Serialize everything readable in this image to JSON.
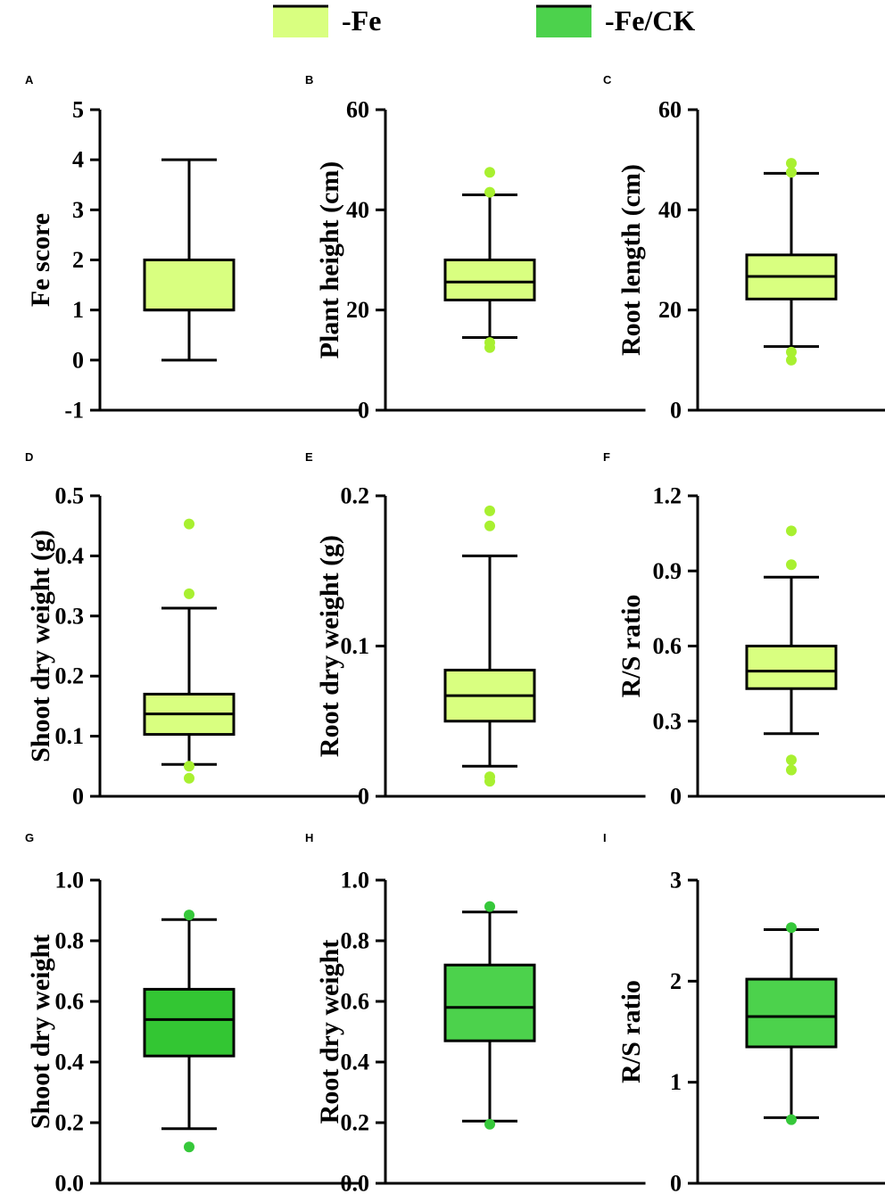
{
  "colors": {
    "fe": "#d9ff80",
    "fe_outlier": "#a8f030",
    "fe_ck": "#4cd24c",
    "fe_ck_box_g": "#33c633",
    "fe_ck_outlier": "#36c83a",
    "axis": "#000000"
  },
  "legend": [
    {
      "label": "-Fe",
      "color_key": "fe"
    },
    {
      "label": "-Fe/CK",
      "color_key": "fe_ck"
    }
  ],
  "chart_data": [
    {
      "panel": "A",
      "type": "box",
      "ylabel": "Fe score",
      "ylim": [
        -1,
        5
      ],
      "yticks": [
        -1,
        0,
        1,
        2,
        3,
        4,
        5
      ],
      "tick_labels": [
        "-1",
        "0",
        "1",
        "2",
        "3",
        "4",
        "5"
      ],
      "q1": 1,
      "median": 1,
      "q3": 2,
      "whisker_low": 0,
      "whisker_high": 4,
      "outliers": [],
      "color_key": "fe",
      "outlier_color_key": "fe_outlier"
    },
    {
      "panel": "B",
      "type": "box",
      "ylabel": "Plant height (cm)",
      "ylim": [
        0,
        60
      ],
      "yticks": [
        0,
        20,
        40,
        60
      ],
      "tick_labels": [
        "0",
        "20",
        "40",
        "60"
      ],
      "q1": 22,
      "median": 25.6,
      "q3": 30,
      "whisker_low": 14.5,
      "whisker_high": 43,
      "outliers": [
        12.5,
        13.5,
        43.5,
        47.5
      ],
      "color_key": "fe",
      "outlier_color_key": "fe_outlier"
    },
    {
      "panel": "C",
      "type": "box",
      "ylabel": "Root length (cm)",
      "ylim": [
        0,
        60
      ],
      "yticks": [
        0,
        20,
        40,
        60
      ],
      "tick_labels": [
        "0",
        "20",
        "40",
        "60"
      ],
      "q1": 22.2,
      "median": 26.7,
      "q3": 31,
      "whisker_low": 12.7,
      "whisker_high": 47.3,
      "outliers": [
        10,
        11.6,
        47.5,
        49.3
      ],
      "color_key": "fe",
      "outlier_color_key": "fe_outlier"
    },
    {
      "panel": "D",
      "type": "box",
      "ylabel": "Shoot dry weight (g)",
      "ylim": [
        0,
        0.5
      ],
      "yticks": [
        0,
        0.1,
        0.2,
        0.3,
        0.4,
        0.5
      ],
      "tick_labels": [
        "0",
        "0.1",
        "0.2",
        "0.3",
        "0.4",
        "0.5"
      ],
      "q1": 0.103,
      "median": 0.137,
      "q3": 0.17,
      "whisker_low": 0.053,
      "whisker_high": 0.313,
      "outliers": [
        0.03,
        0.05,
        0.337,
        0.453
      ],
      "color_key": "fe",
      "outlier_color_key": "fe_outlier"
    },
    {
      "panel": "E",
      "type": "box",
      "ylabel": "Root dry weight (g)",
      "ylim": [
        0,
        0.2
      ],
      "yticks": [
        0,
        0.1,
        0.2
      ],
      "tick_labels": [
        "0",
        "0.1",
        "0.2"
      ],
      "q1": 0.05,
      "median": 0.067,
      "q3": 0.084,
      "whisker_low": 0.02,
      "whisker_high": 0.16,
      "outliers": [
        0.01,
        0.013,
        0.18,
        0.19
      ],
      "color_key": "fe",
      "outlier_color_key": "fe_outlier"
    },
    {
      "panel": "F",
      "type": "box",
      "ylabel": "R/S ratio",
      "ylim": [
        0,
        1.2
      ],
      "yticks": [
        0,
        0.3,
        0.6,
        0.9,
        1.2
      ],
      "tick_labels": [
        "0",
        "0.3",
        "0.6",
        "0.9",
        "1.2"
      ],
      "q1": 0.43,
      "median": 0.5,
      "q3": 0.6,
      "whisker_low": 0.25,
      "whisker_high": 0.875,
      "outliers": [
        0.105,
        0.145,
        0.925,
        1.06
      ],
      "color_key": "fe",
      "outlier_color_key": "fe_outlier"
    },
    {
      "panel": "G",
      "type": "box",
      "ylabel": "Shoot dry weight",
      "ylim": [
        0,
        1
      ],
      "yticks": [
        0,
        0.2,
        0.4,
        0.6,
        0.8,
        1.0
      ],
      "tick_labels": [
        "0.0",
        "0.2",
        "0.4",
        "0.6",
        "0.8",
        "1.0"
      ],
      "q1": 0.42,
      "median": 0.54,
      "q3": 0.64,
      "whisker_low": 0.18,
      "whisker_high": 0.87,
      "outliers": [
        0.12,
        0.885
      ],
      "color_key": "fe_ck_box_g",
      "outlier_color_key": "fe_ck_outlier"
    },
    {
      "panel": "H",
      "type": "box",
      "ylabel": "Root dry weight",
      "ylim": [
        0,
        1
      ],
      "yticks": [
        0,
        0.2,
        0.4,
        0.6,
        0.8,
        1.0
      ],
      "tick_labels": [
        "0.0",
        "0.2",
        "0.4",
        "0.6",
        "0.8",
        "1.0"
      ],
      "q1": 0.47,
      "median": 0.58,
      "q3": 0.72,
      "whisker_low": 0.205,
      "whisker_high": 0.895,
      "outliers": [
        0.195,
        0.913
      ],
      "color_key": "fe_ck",
      "outlier_color_key": "fe_ck_outlier"
    },
    {
      "panel": "I",
      "type": "box",
      "ylabel": "R/S ratio",
      "ylim": [
        0,
        3
      ],
      "yticks": [
        0,
        1,
        2,
        3
      ],
      "tick_labels": [
        "0",
        "1",
        "2",
        "3"
      ],
      "q1": 1.35,
      "median": 1.65,
      "q3": 2.02,
      "whisker_low": 0.65,
      "whisker_high": 2.51,
      "outliers": [
        0.63,
        2.53
      ],
      "color_key": "fe_ck",
      "outlier_color_key": "fe_ck_outlier"
    }
  ]
}
